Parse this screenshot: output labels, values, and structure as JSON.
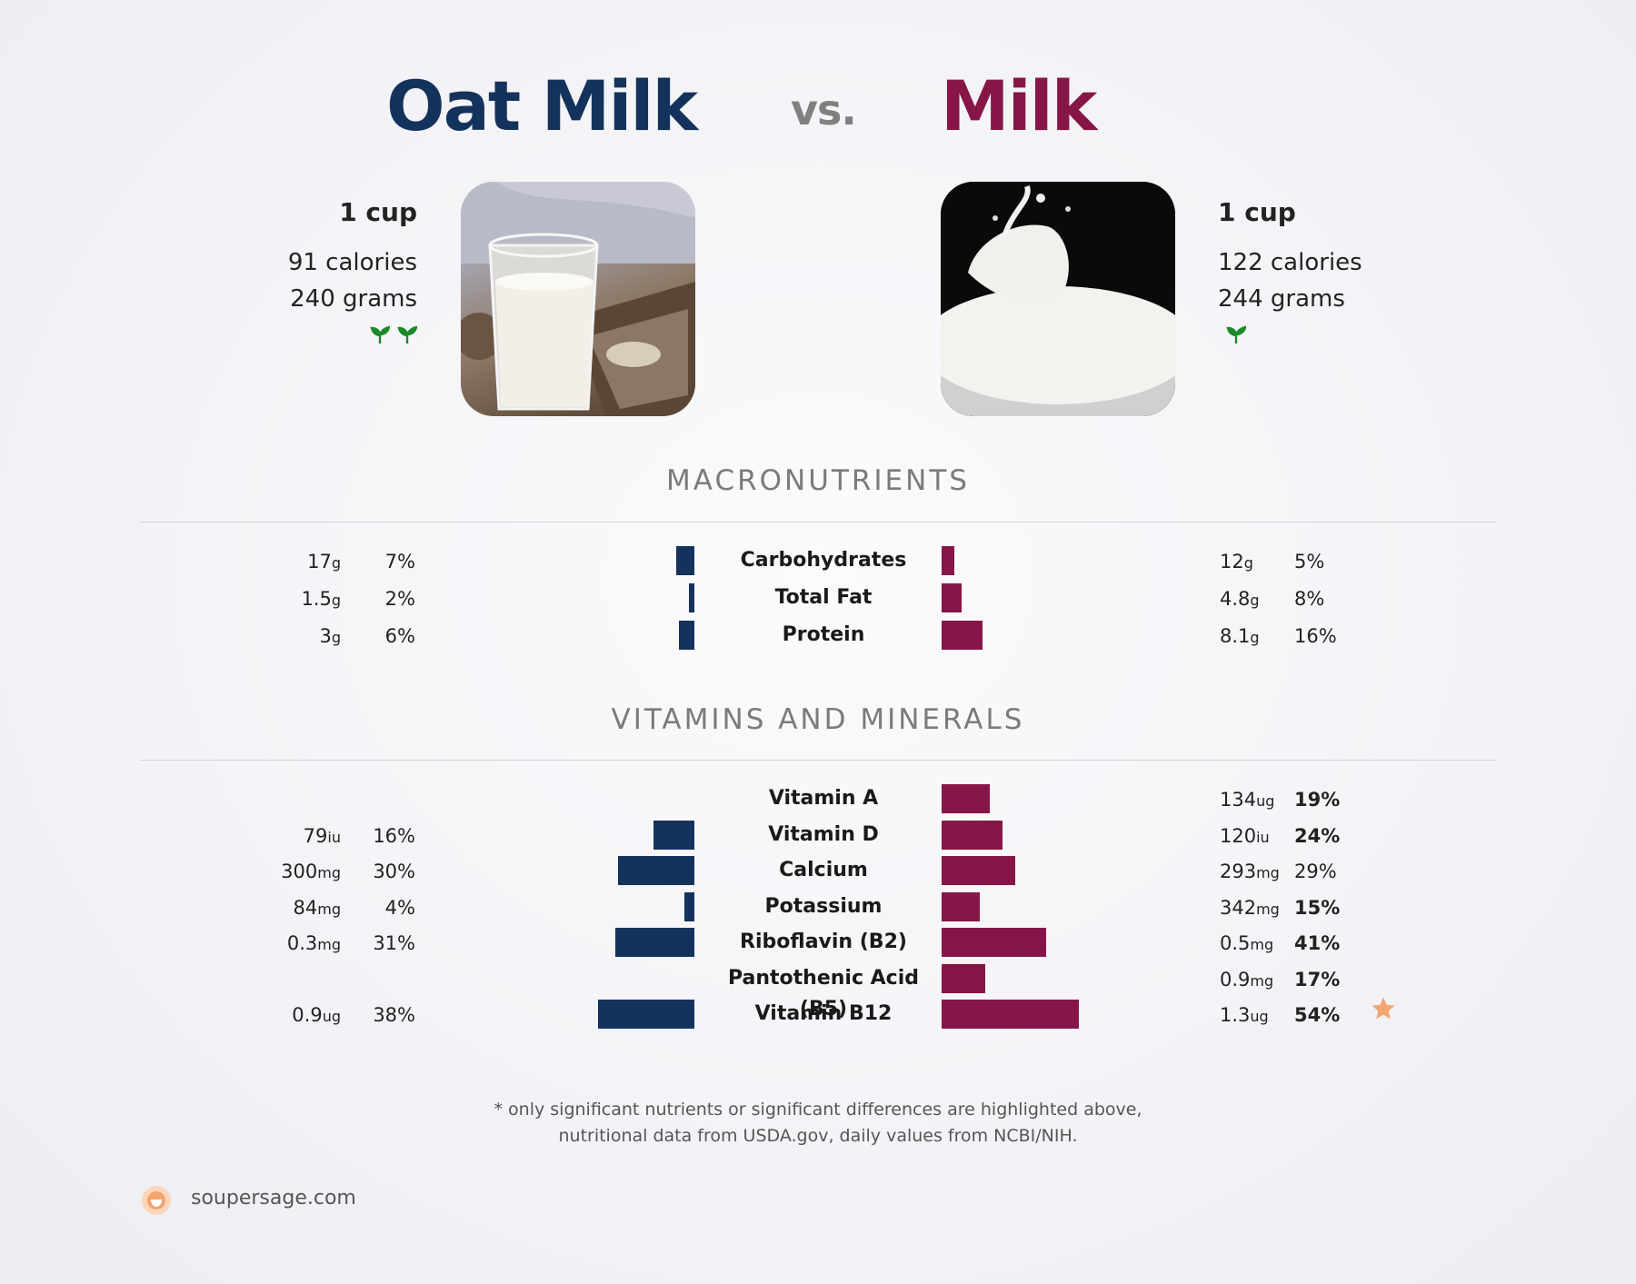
{
  "header": {
    "left_title": "Oat Milk",
    "vs": "vs.",
    "right_title": "Milk"
  },
  "left_food": {
    "serving": "1 cup",
    "calories": "91 calories",
    "grams": "240 grams",
    "sprouts": 2,
    "color": "#14335c"
  },
  "right_food": {
    "serving": "1 cup",
    "calories": "122 calories",
    "grams": "244 grams",
    "sprouts": 1,
    "color": "#871648"
  },
  "sections": {
    "macro_title": "MACRONUTRIENTS",
    "vitamins_title": "VITAMINS AND MINERALS"
  },
  "chart_data": [
    {
      "type": "bar",
      "title": "MACRONUTRIENTS",
      "categories": [
        "Carbohydrates",
        "Total Fat",
        "Protein"
      ],
      "series": [
        {
          "name": "Oat Milk",
          "values": [
            7,
            2,
            6
          ],
          "amounts": [
            "17",
            "1.5",
            "3"
          ],
          "units": [
            "g",
            "g",
            "g"
          ],
          "bold": [
            false,
            false,
            false
          ]
        },
        {
          "name": "Milk",
          "values": [
            5,
            8,
            16
          ],
          "amounts": [
            "12",
            "4.8",
            "8.1"
          ],
          "units": [
            "g",
            "g",
            "g"
          ],
          "bold": [
            false,
            false,
            false
          ]
        }
      ]
    },
    {
      "type": "bar",
      "title": "VITAMINS AND MINERALS",
      "categories": [
        "Vitamin A",
        "Vitamin D",
        "Calcium",
        "Potassium",
        "Riboflavin (B2)",
        "Pantothenic Acid (B5)",
        "Vitamin B12"
      ],
      "series": [
        {
          "name": "Oat Milk",
          "values": [
            null,
            16,
            30,
            4,
            31,
            null,
            38
          ],
          "amounts": [
            null,
            "79",
            "300",
            "84",
            "0.3",
            null,
            "0.9"
          ],
          "units": [
            null,
            "iu",
            "mg",
            "mg",
            "mg",
            null,
            "ug"
          ],
          "bold": [
            false,
            false,
            false,
            false,
            false,
            false,
            false
          ]
        },
        {
          "name": "Milk",
          "values": [
            19,
            24,
            29,
            15,
            41,
            17,
            54
          ],
          "amounts": [
            "134",
            "120",
            "293",
            "342",
            "0.5",
            "0.9",
            "1.3"
          ],
          "units": [
            "ug",
            "iu",
            "mg",
            "mg",
            "mg",
            "mg",
            "ug"
          ],
          "bold": [
            true,
            true,
            false,
            true,
            true,
            true,
            true
          ]
        }
      ],
      "starred": "Vitamin B12"
    }
  ],
  "footnote": {
    "line1": "* only significant nutrients or significant differences are highlighted above,",
    "line2": "nutritional data from USDA.gov, daily values from NCBI/NIH."
  },
  "brand": {
    "site": "soupersage.com",
    "logo_color": "#f5a46c"
  }
}
